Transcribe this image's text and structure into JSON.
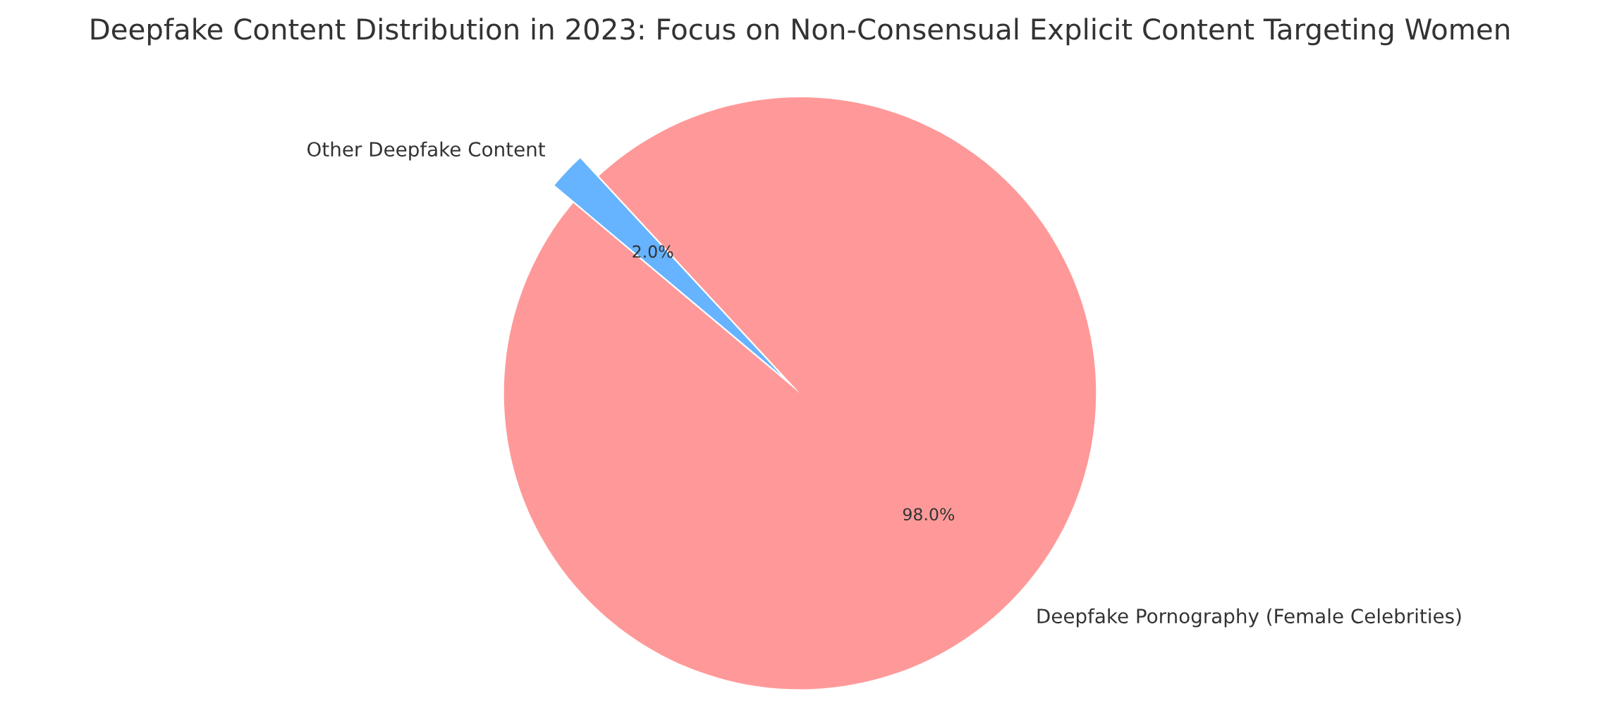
{
  "chart_data": {
    "type": "pie",
    "title": "Deepfake Content Distribution in 2023: Focus on Non-Consensual Explicit Content Targeting Women",
    "categories": [
      "Deepfake Pornography (Female Celebrities)",
      "Other Deepfake Content"
    ],
    "values": [
      98,
      2
    ],
    "colors": [
      "#ff9999",
      "#66b3ff"
    ],
    "value_labels": [
      "98.0%",
      "2.0%"
    ]
  }
}
